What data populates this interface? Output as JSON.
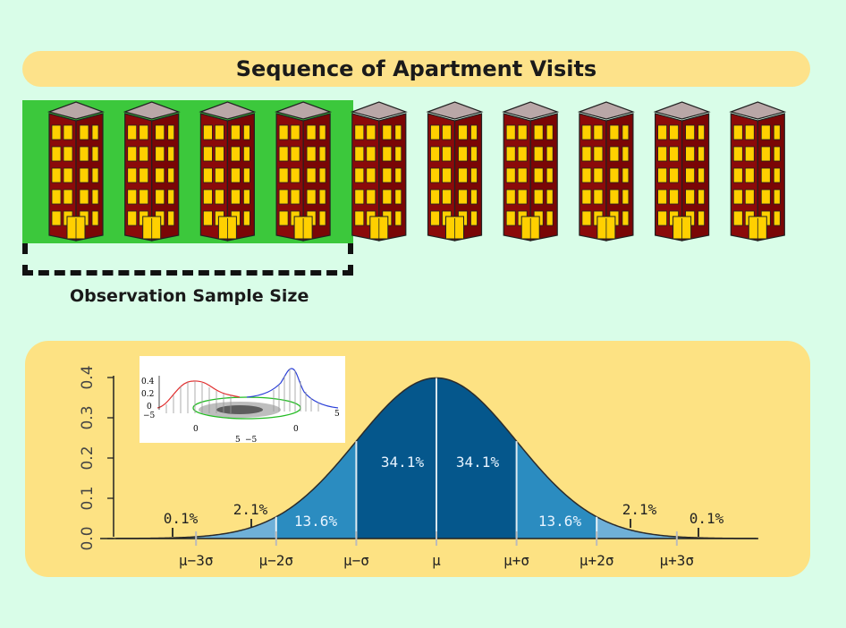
{
  "title": "Sequence of Apartment Visits",
  "sample_label": "Observation Sample Size",
  "buildings": {
    "count": 10,
    "sampled": 4
  },
  "colors": {
    "page_bg": "#d9fde8",
    "banner": "#fde28a",
    "sample_highlight": "#3cc83c",
    "building_wall": "#8b0a0a",
    "building_window": "#ffd000",
    "curve_dark": "#05578c",
    "curve_mid": "#2b8cc0",
    "curve_light": "#6fb0d8"
  },
  "chart_data": {
    "type": "area",
    "distribution": "normal",
    "ylim": [
      0,
      0.4
    ],
    "y_ticks": [
      "0.0",
      "0.1",
      "0.2",
      "0.3",
      "0.4"
    ],
    "x_ticks": [
      "μ−3σ",
      "μ−2σ",
      "μ−σ",
      "μ",
      "μ+σ",
      "μ+2σ",
      "μ+3σ"
    ],
    "regions": [
      {
        "label": "0.1%",
        "from": -4,
        "to": -3
      },
      {
        "label": "2.1%",
        "from": -3,
        "to": -2
      },
      {
        "label": "13.6%",
        "from": -2,
        "to": -1
      },
      {
        "label": "34.1%",
        "from": -1,
        "to": 0
      },
      {
        "label": "34.1%",
        "from": 0,
        "to": 1
      },
      {
        "label": "13.6%",
        "from": 1,
        "to": 2
      },
      {
        "label": "2.1%",
        "from": 2,
        "to": 3
      },
      {
        "label": "0.1%",
        "from": 3,
        "to": 4
      }
    ],
    "inset": {
      "type": "bivariate normal with marginal densities",
      "z_ticks": [
        "0.4",
        "0.2",
        "0"
      ],
      "axis_ticks": [
        "−5",
        "0",
        "5",
        "5",
        "0",
        "−5"
      ]
    }
  }
}
